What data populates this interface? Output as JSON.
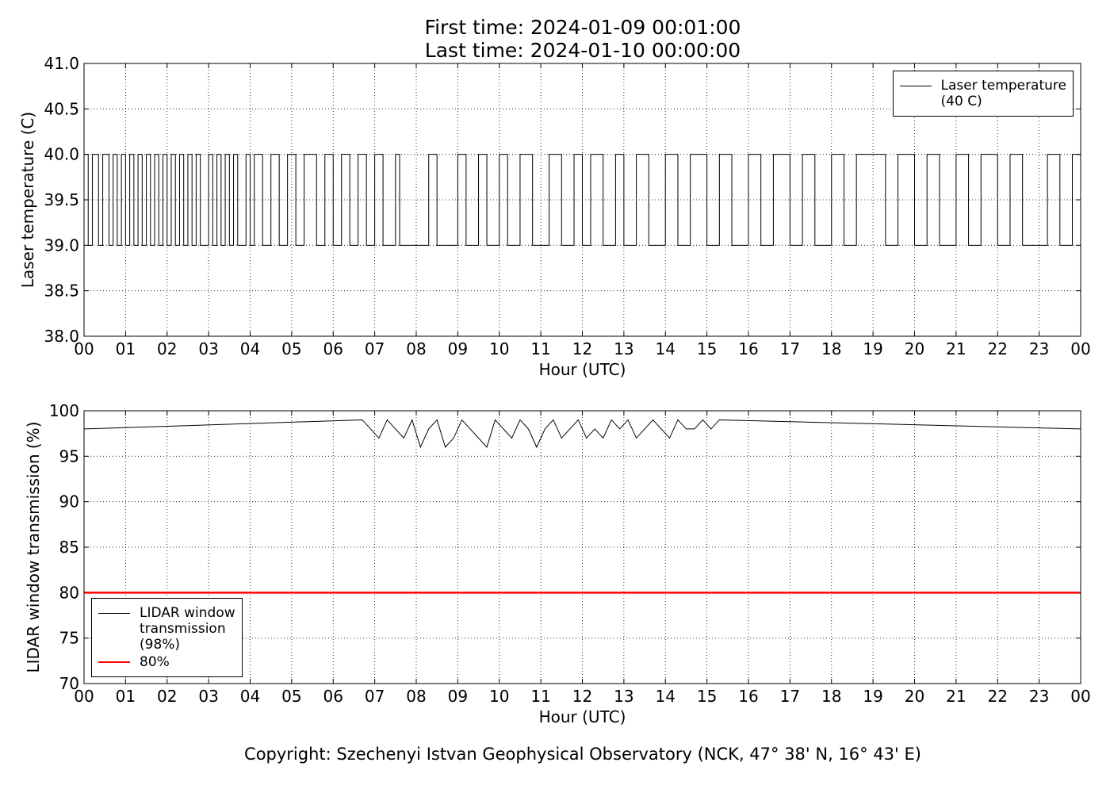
{
  "copyright": "Copyright: Szechenyi Istvan Geophysical Observatory (NCK, 47° 38' N, 16° 43' E)",
  "chart_data": [
    {
      "type": "line",
      "title": "First time: 2024-01-09 00:01:00",
      "subtitle": "Last time: 2024-01-10 00:00:00",
      "xlabel": "Hour (UTC)",
      "ylabel": "Laser temperature (C)",
      "xlim": [
        0,
        24
      ],
      "xticks": [
        {
          "value": 0,
          "label": "00"
        },
        {
          "value": 1,
          "label": "01"
        },
        {
          "value": 2,
          "label": "02"
        },
        {
          "value": 3,
          "label": "03"
        },
        {
          "value": 4,
          "label": "04"
        },
        {
          "value": 5,
          "label": "05"
        },
        {
          "value": 6,
          "label": "06"
        },
        {
          "value": 7,
          "label": "07"
        },
        {
          "value": 8,
          "label": "08"
        },
        {
          "value": 9,
          "label": "09"
        },
        {
          "value": 10,
          "label": "10"
        },
        {
          "value": 11,
          "label": "11"
        },
        {
          "value": 12,
          "label": "12"
        },
        {
          "value": 13,
          "label": "13"
        },
        {
          "value": 14,
          "label": "14"
        },
        {
          "value": 15,
          "label": "15"
        },
        {
          "value": 16,
          "label": "16"
        },
        {
          "value": 17,
          "label": "17"
        },
        {
          "value": 18,
          "label": "18"
        },
        {
          "value": 19,
          "label": "19"
        },
        {
          "value": 20,
          "label": "20"
        },
        {
          "value": 21,
          "label": "21"
        },
        {
          "value": 22,
          "label": "22"
        },
        {
          "value": 23,
          "label": "23"
        },
        {
          "value": 24,
          "label": "00"
        }
      ],
      "ylim": [
        38,
        41
      ],
      "yticks": [
        {
          "value": 38,
          "label": "38.0"
        },
        38.5,
        {
          "value": 39,
          "label": "39.0"
        },
        39.5,
        {
          "value": 40,
          "label": "40.0"
        },
        40.5,
        {
          "value": 41,
          "label": "41.0"
        }
      ],
      "grid": true,
      "legend": "upper right",
      "series": [
        {
          "name": "Laser temperature\n(40 C)",
          "color": "#000000",
          "linewidth": 1,
          "drawstyle": "steps-post",
          "x": [
            0,
            0.1,
            0.2,
            0.35,
            0.45,
            0.6,
            0.7,
            0.8,
            0.9,
            1.0,
            1.1,
            1.2,
            1.3,
            1.4,
            1.5,
            1.6,
            1.7,
            1.8,
            1.9,
            2.0,
            2.1,
            2.2,
            2.3,
            2.4,
            2.5,
            2.6,
            2.7,
            2.8,
            3.0,
            3.1,
            3.2,
            3.3,
            3.4,
            3.5,
            3.6,
            3.7,
            3.9,
            4.0,
            4.1,
            4.3,
            4.5,
            4.7,
            4.9,
            5.1,
            5.3,
            5.6,
            5.8,
            6.0,
            6.2,
            6.4,
            6.6,
            6.8,
            7.0,
            7.2,
            7.5,
            7.6,
            8.3,
            8.5,
            9.0,
            9.2,
            9.5,
            9.7,
            10.0,
            10.2,
            10.5,
            10.8,
            11.2,
            11.5,
            11.8,
            12.0,
            12.2,
            12.5,
            12.8,
            13.0,
            13.3,
            13.6,
            14.0,
            14.3,
            14.6,
            15.0,
            15.3,
            15.6,
            16.0,
            16.3,
            16.6,
            17.0,
            17.3,
            17.6,
            18.0,
            18.3,
            18.6,
            19.3,
            19.6,
            20.0,
            20.3,
            20.6,
            21.0,
            21.3,
            21.6,
            22.0,
            22.3,
            22.6,
            23.2,
            23.5,
            23.8,
            24.0
          ],
          "values": [
            40,
            39,
            40,
            39,
            40,
            39,
            40,
            39,
            40,
            39,
            40,
            39,
            40,
            39,
            40,
            39,
            40,
            39,
            40,
            39,
            40,
            39,
            40,
            39,
            40,
            39,
            40,
            39,
            40,
            39,
            40,
            39,
            40,
            39,
            40,
            39,
            40,
            39,
            40,
            39,
            40,
            39,
            40,
            39,
            40,
            39,
            40,
            39,
            40,
            39,
            40,
            39,
            40,
            39,
            40,
            39,
            40,
            39,
            40,
            39,
            40,
            39,
            40,
            39,
            40,
            39,
            40,
            39,
            40,
            39,
            40,
            39,
            40,
            39,
            40,
            39,
            40,
            39,
            40,
            39,
            40,
            39,
            40,
            39,
            40,
            39,
            40,
            39,
            40,
            39,
            40,
            39,
            40,
            39,
            40,
            39,
            40,
            39,
            40,
            39,
            40,
            39,
            40,
            39,
            40,
            39
          ]
        }
      ]
    },
    {
      "type": "line",
      "xlabel": "Hour (UTC)",
      "ylabel": "LIDAR window transmission (%)",
      "xlim": [
        0,
        24
      ],
      "xticks": [
        {
          "value": 0,
          "label": "00"
        },
        {
          "value": 1,
          "label": "01"
        },
        {
          "value": 2,
          "label": "02"
        },
        {
          "value": 3,
          "label": "03"
        },
        {
          "value": 4,
          "label": "04"
        },
        {
          "value": 5,
          "label": "05"
        },
        {
          "value": 6,
          "label": "06"
        },
        {
          "value": 7,
          "label": "07"
        },
        {
          "value": 8,
          "label": "08"
        },
        {
          "value": 9,
          "label": "09"
        },
        {
          "value": 10,
          "label": "10"
        },
        {
          "value": 11,
          "label": "11"
        },
        {
          "value": 12,
          "label": "12"
        },
        {
          "value": 13,
          "label": "13"
        },
        {
          "value": 14,
          "label": "14"
        },
        {
          "value": 15,
          "label": "15"
        },
        {
          "value": 16,
          "label": "16"
        },
        {
          "value": 17,
          "label": "17"
        },
        {
          "value": 18,
          "label": "18"
        },
        {
          "value": 19,
          "label": "19"
        },
        {
          "value": 20,
          "label": "20"
        },
        {
          "value": 21,
          "label": "21"
        },
        {
          "value": 22,
          "label": "22"
        },
        {
          "value": 23,
          "label": "23"
        },
        {
          "value": 24,
          "label": "00"
        }
      ],
      "ylim": [
        70,
        100
      ],
      "yticks": [
        70,
        75,
        80,
        85,
        90,
        95,
        100
      ],
      "grid": true,
      "legend": "lower left",
      "series": [
        {
          "name": "LIDAR window\ntransmission\n(98%)",
          "color": "#000000",
          "linewidth": 1,
          "x": [
            0,
            6.7,
            6.9,
            7.1,
            7.3,
            7.5,
            7.7,
            7.9,
            8.1,
            8.3,
            8.5,
            8.7,
            8.9,
            9.1,
            9.3,
            9.5,
            9.7,
            9.9,
            10.1,
            10.3,
            10.5,
            10.7,
            10.9,
            11.1,
            11.3,
            11.5,
            11.7,
            11.9,
            12.1,
            12.3,
            12.5,
            12.7,
            12.9,
            13.1,
            13.3,
            13.5,
            13.7,
            13.9,
            14.1,
            14.3,
            14.5,
            14.7,
            14.9,
            15.1,
            15.3,
            24
          ],
          "values": [
            98,
            99,
            98,
            97,
            99,
            98,
            97,
            99,
            96,
            98,
            99,
            96,
            97,
            99,
            98,
            97,
            96,
            99,
            98,
            97,
            99,
            98,
            96,
            98,
            99,
            97,
            98,
            99,
            97,
            98,
            97,
            99,
            98,
            99,
            97,
            98,
            99,
            98,
            97,
            99,
            98,
            98,
            99,
            98,
            99,
            98
          ]
        },
        {
          "name": "80%",
          "color": "#ff0000",
          "linewidth": 2.5,
          "x": [
            0,
            24
          ],
          "values": [
            80,
            80
          ]
        }
      ]
    }
  ]
}
